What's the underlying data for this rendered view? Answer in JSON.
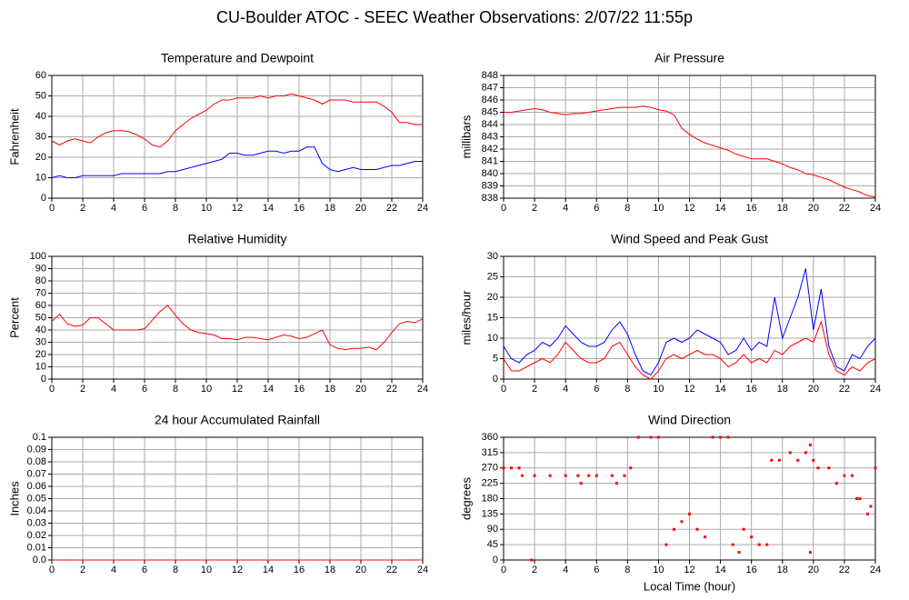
{
  "title": "CU-Boulder ATOC - SEEC Weather Observations: 2/07/22 11:55p",
  "chart_data": [
    {
      "type": "line",
      "title": "Temperature and Dewpoint",
      "ylabel": "Fahrenheit",
      "x": [
        0,
        0.5,
        1,
        1.5,
        2,
        2.5,
        3,
        3.5,
        4,
        4.5,
        5,
        5.5,
        6,
        6.5,
        7,
        7.5,
        8,
        8.5,
        9,
        9.5,
        10,
        10.5,
        11,
        11.5,
        12,
        12.5,
        13,
        13.5,
        14,
        14.5,
        15,
        15.5,
        16,
        16.5,
        17,
        17.5,
        18,
        18.5,
        19,
        19.5,
        20,
        20.5,
        21,
        21.5,
        22,
        22.5,
        23,
        23.5,
        24
      ],
      "series": [
        {
          "color": "#ff0000",
          "values": [
            28,
            26,
            28,
            29,
            28,
            27,
            30,
            32,
            33,
            33,
            32.5,
            31,
            29,
            26,
            25,
            28,
            33,
            36,
            39,
            41,
            43,
            46,
            48,
            48,
            49,
            49,
            49,
            50,
            49,
            50,
            50,
            51,
            50,
            49,
            48,
            46,
            48,
            48,
            48,
            47,
            47,
            47,
            47,
            45,
            42,
            37,
            37,
            36,
            36
          ]
        },
        {
          "color": "#0000ff",
          "values": [
            10,
            11,
            10,
            10,
            11,
            11,
            11,
            11,
            11,
            12,
            12,
            12,
            12,
            12,
            12,
            13,
            13,
            14,
            15,
            16,
            17,
            18,
            19,
            22,
            22,
            21,
            21,
            22,
            23,
            23,
            22,
            23,
            23,
            25,
            25,
            17,
            14,
            13,
            14,
            15,
            14,
            14,
            14,
            15,
            16,
            16,
            17,
            18,
            18
          ]
        }
      ],
      "xlim": [
        0,
        24
      ],
      "xticks": [
        0,
        2,
        4,
        6,
        8,
        10,
        12,
        14,
        16,
        18,
        20,
        22,
        24
      ],
      "ylim": [
        0,
        60
      ],
      "yticks": [
        0,
        10,
        20,
        30,
        40,
        50,
        60
      ],
      "grid": true
    },
    {
      "type": "line",
      "title": "Air Pressure",
      "ylabel": "millibars",
      "x": [
        0,
        0.5,
        1,
        1.5,
        2,
        2.5,
        3,
        3.5,
        4,
        4.5,
        5,
        5.5,
        6,
        6.5,
        7,
        7.5,
        8,
        8.5,
        9,
        9.5,
        10,
        10.5,
        11,
        11.5,
        12,
        12.5,
        13,
        13.5,
        14,
        14.5,
        15,
        15.5,
        16,
        16.5,
        17,
        17.5,
        18,
        18.5,
        19,
        19.5,
        20,
        20.5,
        21,
        21.5,
        22,
        22.5,
        23,
        23.5,
        24
      ],
      "series": [
        {
          "color": "#ff0000",
          "values": [
            845,
            845,
            845.1,
            845.2,
            845.3,
            845.2,
            845,
            844.9,
            844.8,
            844.9,
            844.9,
            845,
            845.1,
            845.2,
            845.3,
            845.4,
            845.4,
            845.4,
            845.5,
            845.4,
            845.2,
            845.1,
            844.8,
            843.7,
            843.2,
            842.8,
            842.5,
            842.3,
            842.1,
            841.9,
            841.6,
            841.4,
            841.2,
            841.2,
            841.2,
            841,
            840.8,
            840.5,
            840.3,
            840,
            839.9,
            839.7,
            839.5,
            839.2,
            838.9,
            838.7,
            838.5,
            838.2,
            838.1
          ]
        }
      ],
      "xlim": [
        0,
        24
      ],
      "xticks": [
        0,
        2,
        4,
        6,
        8,
        10,
        12,
        14,
        16,
        18,
        20,
        22,
        24
      ],
      "ylim": [
        838,
        848
      ],
      "yticks": [
        838,
        839,
        840,
        841,
        842,
        843,
        844,
        845,
        846,
        847,
        848
      ],
      "grid": true
    },
    {
      "type": "line",
      "title": "Relative Humidity",
      "ylabel": "Percent",
      "x": [
        0,
        0.5,
        1,
        1.5,
        2,
        2.5,
        3,
        3.5,
        4,
        4.5,
        5,
        5.5,
        6,
        6.5,
        7,
        7.5,
        8,
        8.5,
        9,
        9.5,
        10,
        10.5,
        11,
        11.5,
        12,
        12.5,
        13,
        13.5,
        14,
        14.5,
        15,
        15.5,
        16,
        16.5,
        17,
        17.5,
        18,
        18.5,
        19,
        19.5,
        20,
        20.5,
        21,
        21.5,
        22,
        22.5,
        23,
        23.5,
        24
      ],
      "series": [
        {
          "color": "#ff0000",
          "values": [
            47,
            53,
            45,
            43,
            44,
            50,
            50,
            45,
            40,
            40,
            40,
            40,
            41,
            48,
            55,
            60,
            52,
            45,
            40,
            38,
            37,
            36,
            33,
            33,
            32,
            34,
            34,
            33,
            32,
            34,
            36,
            35,
            33,
            34,
            37,
            40,
            28,
            25,
            24,
            25,
            25,
            26,
            24,
            30,
            38,
            45,
            47,
            46,
            49
          ]
        }
      ],
      "xlim": [
        0,
        24
      ],
      "xticks": [
        0,
        2,
        4,
        6,
        8,
        10,
        12,
        14,
        16,
        18,
        20,
        22,
        24
      ],
      "ylim": [
        0,
        100
      ],
      "yticks": [
        0,
        10,
        20,
        30,
        40,
        50,
        60,
        70,
        80,
        90,
        100
      ],
      "grid": true
    },
    {
      "type": "line",
      "title": "Wind Speed and Peak Gust",
      "ylabel": "miles/hour",
      "x": [
        0,
        0.5,
        1,
        1.5,
        2,
        2.5,
        3,
        3.5,
        4,
        4.5,
        5,
        5.5,
        6,
        6.5,
        7,
        7.5,
        8,
        8.5,
        9,
        9.5,
        10,
        10.5,
        11,
        11.5,
        12,
        12.5,
        13,
        13.5,
        14,
        14.5,
        15,
        15.5,
        16,
        16.5,
        17,
        17.5,
        18,
        18.5,
        19,
        19.5,
        20,
        20.5,
        21,
        21.5,
        22,
        22.5,
        23,
        23.5,
        24
      ],
      "series": [
        {
          "color": "#0000ff",
          "values": [
            8,
            5,
            4,
            6,
            7,
            9,
            8,
            10,
            13,
            11,
            9,
            8,
            8,
            9,
            12,
            14,
            11,
            6,
            2,
            1,
            4,
            9,
            10,
            9,
            10,
            12,
            11,
            10,
            9,
            6,
            7,
            10,
            7,
            9,
            8,
            20,
            10,
            15,
            20,
            27,
            12,
            22,
            8,
            3,
            2,
            6,
            5,
            8,
            10
          ]
        },
        {
          "color": "#ff0000",
          "values": [
            5,
            2,
            2,
            3,
            4,
            5,
            4,
            6,
            9,
            7,
            5,
            4,
            4,
            5,
            8,
            9,
            6,
            3,
            1,
            0,
            2,
            5,
            6,
            5,
            6,
            7,
            6,
            6,
            5,
            3,
            4,
            6,
            4,
            5,
            4,
            7,
            6,
            8,
            9,
            10,
            9,
            14,
            6,
            2,
            1,
            3,
            2,
            4,
            5
          ]
        }
      ],
      "xlim": [
        0,
        24
      ],
      "xticks": [
        0,
        2,
        4,
        6,
        8,
        10,
        12,
        14,
        16,
        18,
        20,
        22,
        24
      ],
      "ylim": [
        0,
        30
      ],
      "yticks": [
        0,
        5,
        10,
        15,
        20,
        25,
        30
      ],
      "grid": true
    },
    {
      "type": "line",
      "title": "24 hour Accumulated Rainfall",
      "ylabel": "Inches",
      "x": [
        0,
        24
      ],
      "series": [
        {
          "color": "#ff0000",
          "values": [
            0,
            0
          ]
        }
      ],
      "xlim": [
        0,
        24
      ],
      "xticks": [
        0,
        2,
        4,
        6,
        8,
        10,
        12,
        14,
        16,
        18,
        20,
        22,
        24
      ],
      "ylim": [
        0,
        0.1
      ],
      "yticks": [
        {
          "value": 0,
          "label": "0.0"
        },
        0.01,
        0.02,
        0.03,
        0.04,
        0.05,
        0.06,
        0.07,
        0.08,
        0.09,
        0.1
      ],
      "grid": true
    },
    {
      "type": "scatter",
      "title": "Wind Direction",
      "ylabel": "degrees",
      "xlabel": "Local Time (hour)",
      "x": [
        0,
        0.5,
        1,
        1.2,
        2,
        3,
        4,
        4.8,
        5,
        5.5,
        6,
        7,
        7.3,
        7.8,
        8.2,
        8.7,
        9.5,
        10,
        10.5,
        11,
        11.5,
        12,
        12.5,
        13,
        13.5,
        14,
        14.5,
        14.8,
        15.2,
        15.5,
        16,
        16.5,
        17,
        17.3,
        17.8,
        18.5,
        19,
        19.5,
        19.8,
        20,
        20.3,
        21,
        21.5,
        22,
        22.5,
        22.8,
        23,
        23.5,
        23.7,
        24,
        1.8,
        19.8
      ],
      "series": [
        {
          "color": "#ff0000",
          "values": [
            270,
            270,
            270,
            247.5,
            247.5,
            247.5,
            247.5,
            247.5,
            225,
            247.5,
            247.5,
            247.5,
            225,
            247.5,
            270,
            360,
            360,
            360,
            45,
            90,
            112.5,
            135,
            90,
            67.5,
            360,
            360,
            360,
            45,
            22.5,
            90,
            67.5,
            45,
            45,
            292.5,
            292.5,
            315,
            292.5,
            315,
            337.5,
            292.5,
            270,
            270,
            225,
            247.5,
            247.5,
            180,
            180,
            135,
            157.5,
            270,
            0,
            22.5
          ]
        }
      ],
      "xlim": [
        0,
        24
      ],
      "xticks": [
        0,
        2,
        4,
        6,
        8,
        10,
        12,
        14,
        16,
        18,
        20,
        22,
        24
      ],
      "ylim": [
        0,
        360
      ],
      "yticks": [
        0,
        45,
        90,
        135,
        180,
        225,
        270,
        315,
        360
      ],
      "grid": true
    }
  ]
}
